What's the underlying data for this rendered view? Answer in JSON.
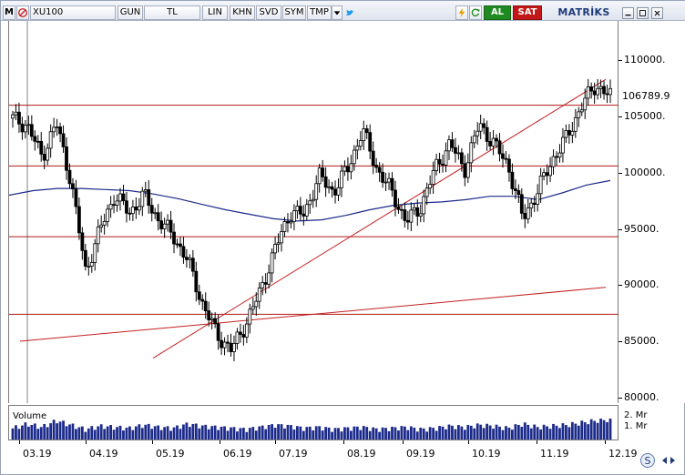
{
  "toolbar": {
    "m_label": "M",
    "symbol": "XU100",
    "period": "GUN",
    "currency": "TL",
    "scale": "LIN",
    "buttons": [
      "KHN",
      "SVD",
      "SYM",
      "TMP"
    ],
    "buy_label": "AL",
    "sell_label": "SAT",
    "brand": "MATRİKS",
    "icons": [
      "cancel-icon",
      "dropdown-icon",
      "twitter-icon",
      "lightning-icon",
      "refresh-icon",
      "minimize-icon",
      "restore-icon",
      "close-icon"
    ],
    "colors": {
      "buy": "#1f8a1f",
      "sell": "#c21818",
      "brand": "#1f3a7a"
    }
  },
  "price_axis": {
    "ticks": [
      "110000.",
      "105000.",
      "100000.",
      "95000.",
      "90000.",
      "85000.",
      "80000."
    ],
    "last_price": "106789.9"
  },
  "volume": {
    "label": "Volume",
    "ticks": [
      "2. Mr",
      "1. Mr"
    ]
  },
  "x_axis": {
    "ticks": [
      "03.19",
      "04.19",
      "05.19",
      "06.19",
      "07.19",
      "08.19",
      "09.19",
      "10.19",
      "11.19",
      "12.19"
    ]
  },
  "chart_data": {
    "type": "candlestick",
    "ylim": [
      79500,
      113500
    ],
    "horizontal_levels": [
      106000,
      100600,
      94300,
      87400
    ],
    "trendlines": [
      {
        "from": [
          "05.19",
          83500
        ],
        "to": [
          "12.19",
          108300
        ],
        "color": "#c42020"
      },
      {
        "from": [
          "03.19",
          85000
        ],
        "to": [
          "12.19",
          89800
        ],
        "color": "#c42020"
      }
    ],
    "moving_average_color": "#1c2a8a",
    "moving_average": [
      98000,
      98400,
      98600,
      98600,
      98500,
      98400,
      98100,
      97700,
      97200,
      96700,
      96300,
      95900,
      95700,
      95800,
      96200,
      96700,
      97100,
      97300,
      97400,
      97600,
      97900,
      97900,
      97600,
      98200,
      98900,
      99300
    ],
    "close": [
      104800,
      104200,
      101400,
      104400,
      99200,
      91200,
      95000,
      98000,
      96400,
      98000,
      95800,
      94400,
      92200,
      88400,
      85600,
      84200,
      86600,
      89500,
      93200,
      96400,
      96300,
      99700,
      98300,
      100400,
      103800,
      100300,
      98300,
      95600,
      97000,
      100400,
      102600,
      100300,
      104300,
      102600,
      100600,
      95900,
      98300,
      101100,
      103100,
      105900,
      107800,
      106790
    ],
    "volume_level": [
      0.55,
      0.75,
      0.6,
      0.9,
      0.7,
      0.5,
      0.65,
      0.6,
      0.55,
      0.7,
      0.6,
      0.55,
      0.75,
      0.65,
      0.6,
      0.55,
      0.5,
      0.6,
      0.7,
      0.65,
      0.55,
      0.6,
      0.5,
      0.55,
      0.6,
      0.5,
      0.55,
      0.6,
      0.5,
      0.55,
      0.65,
      0.6,
      0.7,
      0.65,
      0.55,
      0.75,
      0.6,
      0.65,
      0.7,
      0.8,
      0.9,
      0.95
    ]
  }
}
